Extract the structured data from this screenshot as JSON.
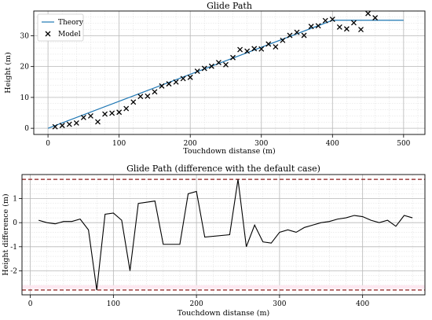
{
  "chart_data": [
    {
      "type": "line",
      "title": "Glide Path",
      "xlabel": "Touchdown distanse (m)",
      "ylabel": "Height (m)",
      "xlim": [
        -20,
        530
      ],
      "ylim": [
        -2,
        38
      ],
      "xticks": [
        0,
        100,
        200,
        300,
        400,
        500
      ],
      "yticks": [
        0,
        10,
        20,
        30
      ],
      "grid": true,
      "minor_grid": true,
      "legend_position": "top-left",
      "series": [
        {
          "name": "Theory",
          "kind": "line",
          "color": "#1f77b4",
          "x": [
            0,
            400,
            500
          ],
          "y": [
            0,
            35,
            35
          ]
        },
        {
          "name": "Model",
          "kind": "scatter",
          "marker": "x",
          "color": "#000000",
          "x": [
            10,
            20,
            30,
            40,
            50,
            60,
            70,
            80,
            90,
            100,
            110,
            120,
            130,
            140,
            150,
            160,
            170,
            180,
            190,
            200,
            210,
            220,
            230,
            240,
            250,
            260,
            270,
            280,
            290,
            300,
            310,
            320,
            330,
            340,
            350,
            360,
            370,
            380,
            390,
            400,
            410,
            420,
            430,
            440,
            450,
            460
          ],
          "y": [
            0.5,
            0.9,
            1.3,
            1.7,
            3.5,
            4.0,
            2.1,
            4.6,
            4.9,
            5.2,
            6.4,
            8.5,
            10.3,
            10.4,
            11.8,
            13.7,
            14.4,
            15.0,
            16.1,
            16.5,
            18.5,
            19.4,
            20.1,
            21.3,
            20.6,
            22.9,
            25.5,
            25.0,
            25.8,
            25.7,
            27.3,
            26.4,
            28.5,
            30.1,
            31.1,
            30.1,
            33.0,
            33.2,
            34.9,
            35.3,
            32.8,
            32.2,
            34.2,
            32.0,
            37.2,
            35.8
          ]
        }
      ]
    },
    {
      "type": "line",
      "title": "Glide Path (difference with the default case)",
      "xlabel": "Touchdown distanse (m)",
      "ylabel": "Height difference (m)",
      "xlim": [
        -10,
        475
      ],
      "ylim": [
        -3.0,
        2.0
      ],
      "xticks": [
        0,
        100,
        200,
        300,
        400
      ],
      "yticks": [
        -2,
        -1,
        0,
        1
      ],
      "grid": true,
      "minor_grid": true,
      "series": [
        {
          "kind": "line",
          "color": "#000000",
          "x": [
            10,
            20,
            30,
            40,
            50,
            60,
            70,
            80,
            90,
            100,
            110,
            120,
            130,
            150,
            160,
            180,
            190,
            200,
            210,
            240,
            250,
            260,
            270,
            280,
            290,
            300,
            310,
            320,
            330,
            340,
            350,
            360,
            370,
            380,
            390,
            400,
            410,
            420,
            430,
            440,
            450,
            460
          ],
          "y": [
            0.1,
            0.0,
            -0.05,
            0.05,
            0.05,
            0.15,
            -0.3,
            -2.8,
            0.35,
            0.4,
            0.1,
            -2.0,
            0.8,
            0.9,
            -0.9,
            -0.9,
            1.2,
            1.3,
            -0.6,
            -0.5,
            1.8,
            -1.0,
            -0.1,
            -0.8,
            -0.85,
            -0.4,
            -0.3,
            -0.4,
            -0.2,
            -0.1,
            0.0,
            0.05,
            0.15,
            0.2,
            0.3,
            0.25,
            0.1,
            0.0,
            0.1,
            -0.15,
            0.3,
            0.2
          ]
        }
      ],
      "reference_lines": [
        {
          "y": 1.8,
          "style": "dashed",
          "color": "#8b1a1a"
        },
        {
          "y": -2.8,
          "style": "dashed",
          "color": "#8b1a1a"
        }
      ]
    }
  ]
}
